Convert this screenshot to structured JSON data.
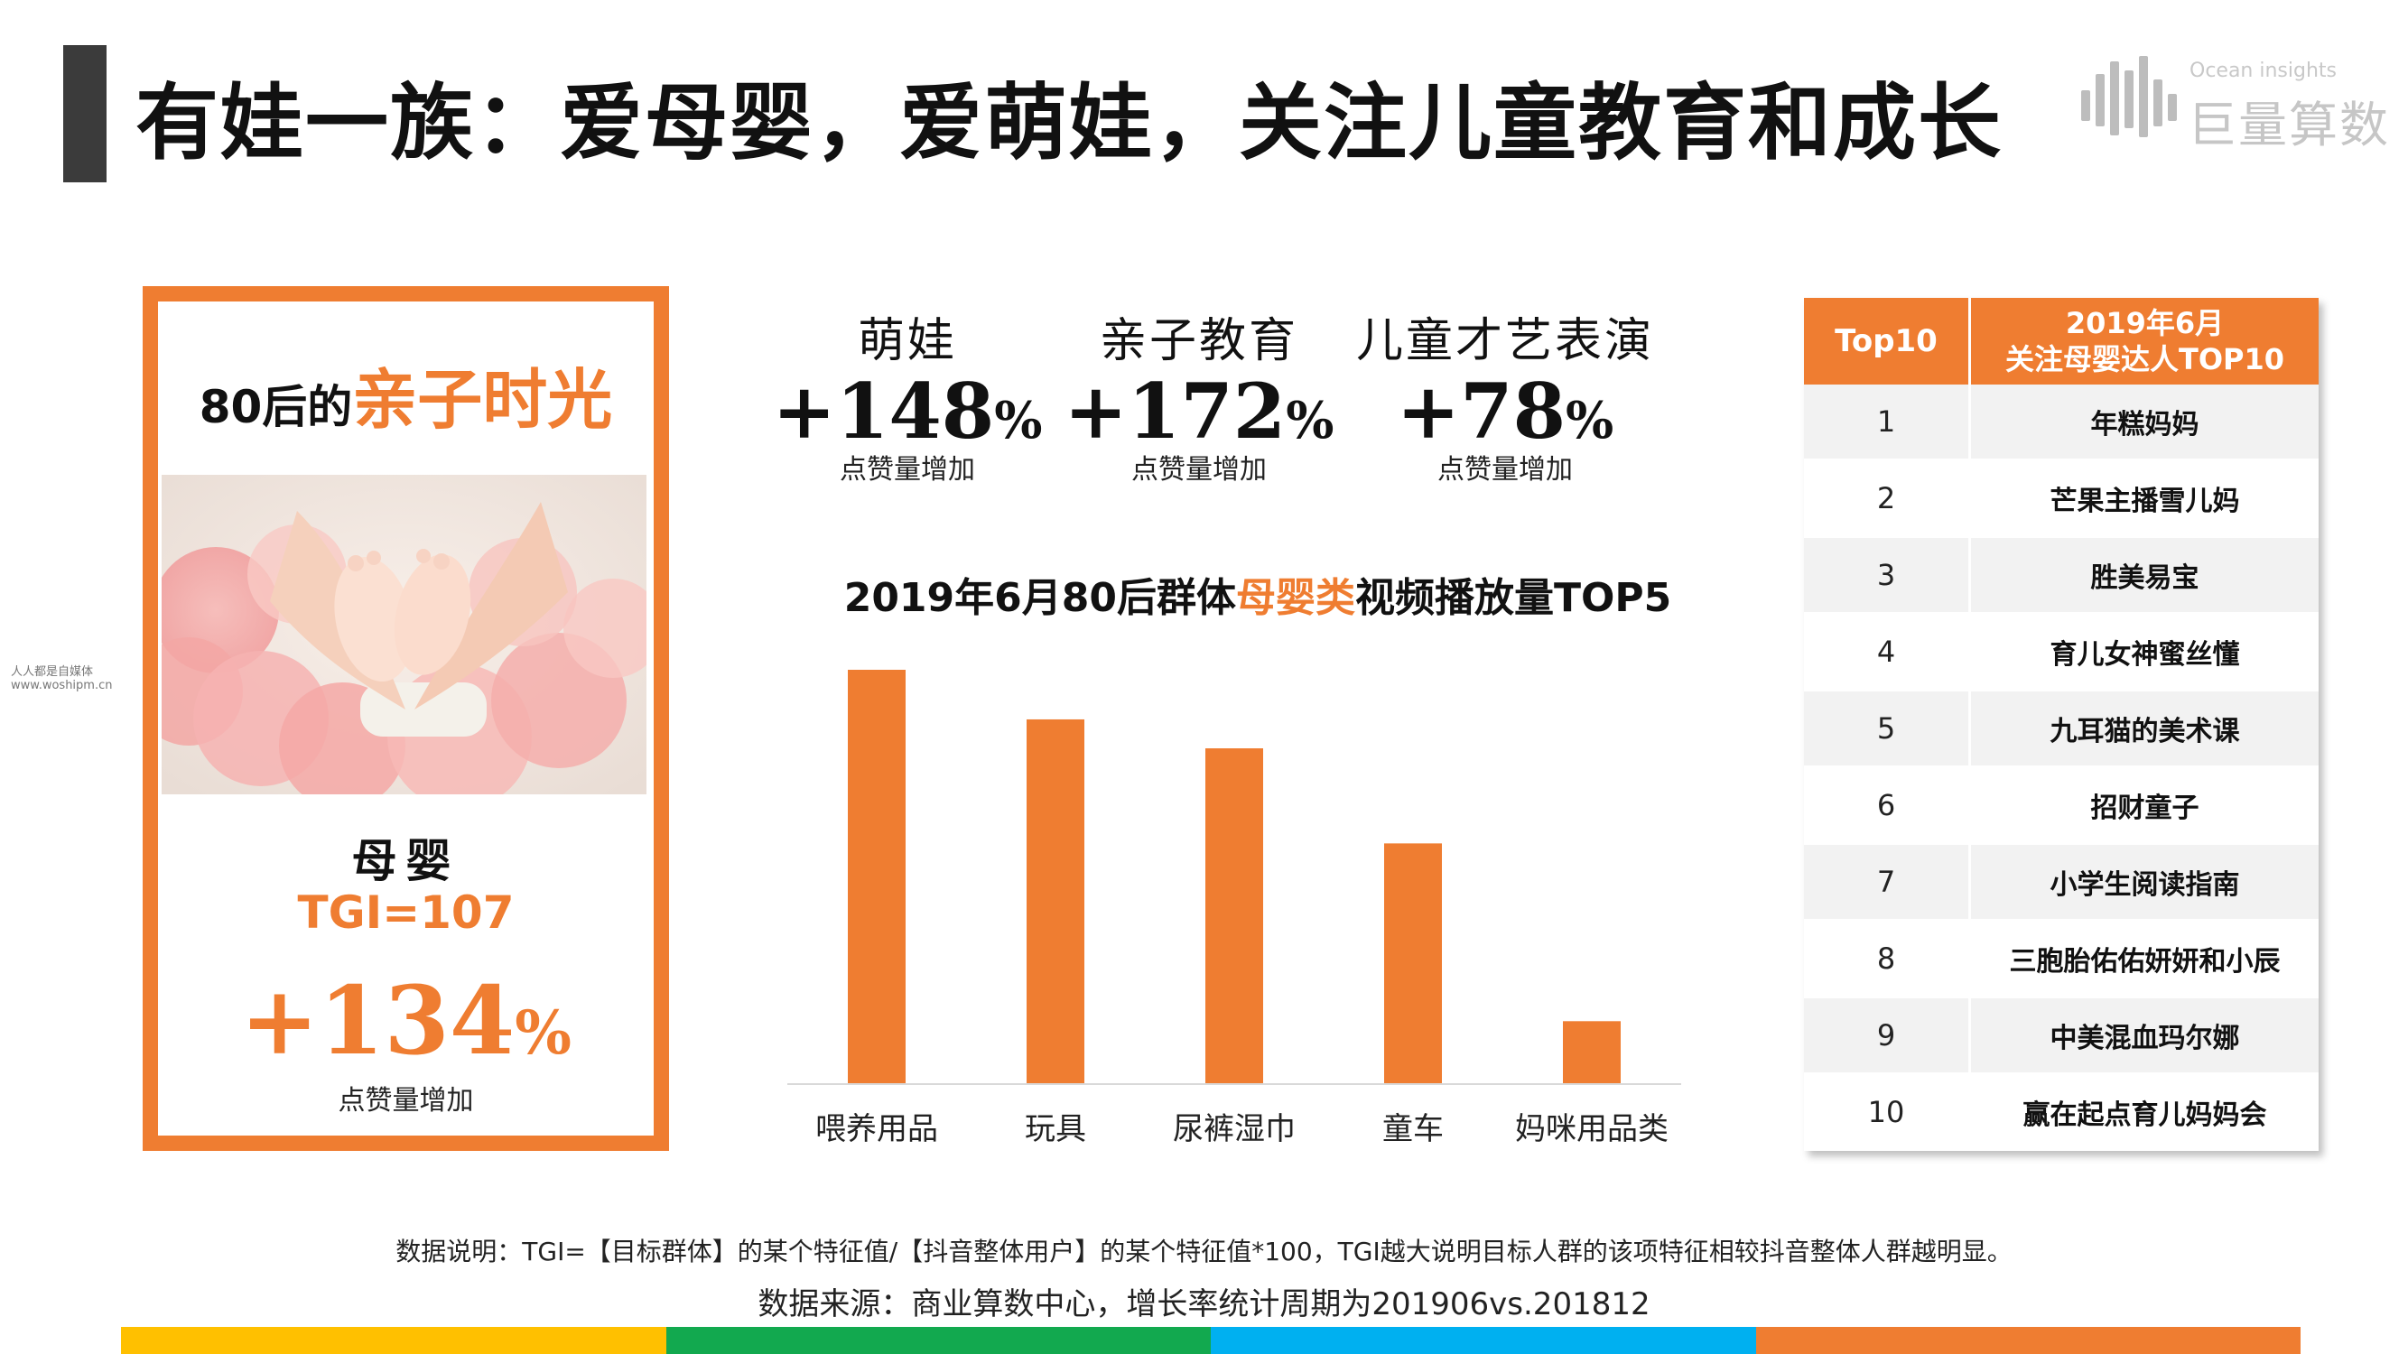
{
  "header": {
    "title": "有娃一族：爱母婴，爱萌娃，关注儿童教育和成长"
  },
  "logo": {
    "en": "Ocean insights",
    "cn": "巨量算数"
  },
  "watermark": {
    "line1": "人人都是自媒体",
    "line2": "www.woshipm.cn"
  },
  "card": {
    "heading_prefix": "80后的",
    "heading_highlight": "亲子时光",
    "category": "母婴",
    "tgi": "TGI=107",
    "growth_number": "+134",
    "growth_unit": "%",
    "growth_label": "点赞量增加"
  },
  "stats": [
    {
      "name": "萌娃",
      "number": "+148",
      "unit": "%",
      "label": "点赞量增加"
    },
    {
      "name": "亲子教育",
      "number": "+172",
      "unit": "%",
      "label": "点赞量增加"
    },
    {
      "name": "儿童才艺表演",
      "number": "+78",
      "unit": "%",
      "label": "点赞量增加"
    }
  ],
  "chart_title": {
    "prefix": "2019年6月80后群体",
    "highlight": "母婴类",
    "suffix": "视频播放量TOP5"
  },
  "chart_data": {
    "type": "bar",
    "title": "2019年6月80后群体母婴类视频播放量TOP5",
    "categories": [
      "喂养用品",
      "玩具",
      "尿裤湿巾",
      "童车",
      "妈咪用品类"
    ],
    "values": [
      100,
      88,
      81,
      58,
      15
    ],
    "ylim": [
      0,
      100
    ],
    "grid": false,
    "legend": "none",
    "bar_color": "#ef7d31"
  },
  "table": {
    "header_rank": "Top10",
    "header_title_line1": "2019年6月",
    "header_title_line2": "关注母婴达人TOP10",
    "rows": [
      {
        "rank": "1",
        "name": "年糕妈妈"
      },
      {
        "rank": "2",
        "name": "芒果主播雪儿妈"
      },
      {
        "rank": "3",
        "name": "胜美易宝"
      },
      {
        "rank": "4",
        "name": "育儿女神蜜丝懂"
      },
      {
        "rank": "5",
        "name": "九耳猫的美术课"
      },
      {
        "rank": "6",
        "name": "招财童子"
      },
      {
        "rank": "7",
        "name": "小学生阅读指南"
      },
      {
        "rank": "8",
        "name": "三胞胎佑佑妍妍和小辰"
      },
      {
        "rank": "9",
        "name": "中美混血玛尔娜"
      },
      {
        "rank": "10",
        "name": "赢在起点育儿妈妈会"
      }
    ],
    "row_colors": [
      "#f2f2f2",
      "#ffffff"
    ]
  },
  "footer": {
    "note": "数据说明：TGI=【目标群体】的某个特征值/【抖音整体用户】的某个特征值*100，TGI越大说明目标人群的该项特征相较抖音整体人群越明显。",
    "source": "数据来源：商业算数中心，增长率统计周期为201906vs.201812",
    "bar_colors": [
      "#ffc000",
      "#12a94f",
      "#00b0f0",
      "#ef7d31"
    ]
  },
  "colors": {
    "accent": "#ef7d31",
    "title_bar": "#3b3b3b"
  }
}
